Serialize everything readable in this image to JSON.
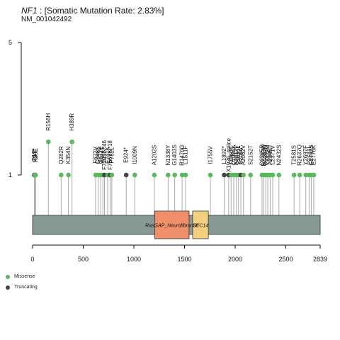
{
  "title": {
    "gene": "NF1",
    "rest": " : [Somatic Mutation Rate: 2.83%]"
  },
  "subtitle": "NM_001042492",
  "colors": {
    "missense": "#5cb85c",
    "truncating": "#444444",
    "backbone": "#889a96",
    "stem": "#aaaaaa"
  },
  "legend": [
    {
      "label": "Missense",
      "color": "#5cb85c"
    },
    {
      "label": "Truncating",
      "color": "#444444"
    }
  ],
  "chart_data": {
    "type": "lollipop",
    "title": "NF1 : [Somatic Mutation Rate: 2.83%]",
    "subtitle": "NM_001042492",
    "xlim": [
      0,
      2839
    ],
    "x_ticks": [
      0,
      500,
      1000,
      1500,
      2000,
      2500,
      2839
    ],
    "ylim": [
      0,
      5
    ],
    "y_ticks": [
      1,
      5
    ],
    "domains": [
      {
        "name": "RasGAP_Neurofibromin",
        "start": 1205,
        "end": 1545,
        "color": "#f0906a"
      },
      {
        "name": "SEC14",
        "start": 1580,
        "end": 1735,
        "color": "#f5cf80"
      }
    ],
    "mutations": [
      {
        "label": "Q17*",
        "pos": 17,
        "count": 1,
        "type": "Truncating"
      },
      {
        "label": "P24T",
        "pos": 24,
        "count": 1,
        "type": "Missense"
      },
      {
        "label": "K30E",
        "pos": 30,
        "count": 1,
        "type": "Missense"
      },
      {
        "label": "R156H",
        "pos": 156,
        "count": 2,
        "type": "Missense"
      },
      {
        "label": "Q282R",
        "pos": 282,
        "count": 1,
        "type": "Missense"
      },
      {
        "label": "K354N",
        "pos": 354,
        "count": 1,
        "type": "Missense"
      },
      {
        "label": "H389R",
        "pos": 389,
        "count": 2,
        "type": "Missense"
      },
      {
        "label": "F622V",
        "pos": 622,
        "count": 1,
        "type": "Missense"
      },
      {
        "label": "G648S",
        "pos": 648,
        "count": 1,
        "type": "Missense"
      },
      {
        "label": "G672E",
        "pos": 672,
        "count": 1,
        "type": "Missense"
      },
      {
        "label": "A694T",
        "pos": 694,
        "count": 1,
        "type": "Missense"
      },
      {
        "label": "F710Sfs*46",
        "pos": 710,
        "count": 1,
        "type": "Truncating"
      },
      {
        "label": "E741K",
        "pos": 741,
        "count": 1,
        "type": "Missense"
      },
      {
        "label": "F766Yfs*18",
        "pos": 766,
        "count": 1,
        "type": "Truncating"
      },
      {
        "label": "P782L",
        "pos": 782,
        "count": 1,
        "type": "Missense"
      },
      {
        "label": "E924*",
        "pos": 924,
        "count": 1,
        "type": "Truncating"
      },
      {
        "label": "I1009N",
        "pos": 1009,
        "count": 1,
        "type": "Missense"
      },
      {
        "label": "A1202S",
        "pos": 1202,
        "count": 1,
        "type": "Missense"
      },
      {
        "label": "N1338Y",
        "pos": 1338,
        "count": 1,
        "type": "Missense"
      },
      {
        "label": "G1403S",
        "pos": 1403,
        "count": 1,
        "type": "Missense"
      },
      {
        "label": "R1476G",
        "pos": 1476,
        "count": 1,
        "type": "Missense"
      },
      {
        "label": "L1511F",
        "pos": 1511,
        "count": 1,
        "type": "Missense"
      },
      {
        "label": "I1755V",
        "pos": 1755,
        "count": 1,
        "type": "Missense"
      },
      {
        "label": "L1892*",
        "pos": 1892,
        "count": 1,
        "type": "Truncating"
      },
      {
        "label": "X1936_splice",
        "pos": 1936,
        "count": 1,
        "type": "Truncating"
      },
      {
        "label": "I1960T",
        "pos": 1960,
        "count": 1,
        "type": "Missense"
      },
      {
        "label": "Q1986K",
        "pos": 1986,
        "count": 1,
        "type": "Missense"
      },
      {
        "label": "A2012V",
        "pos": 2012,
        "count": 1,
        "type": "Missense"
      },
      {
        "label": "V2033L",
        "pos": 2033,
        "count": 1,
        "type": "Missense"
      },
      {
        "label": "R2056*",
        "pos": 2056,
        "count": 1,
        "type": "Truncating"
      },
      {
        "label": "A2082V",
        "pos": 2082,
        "count": 1,
        "type": "Missense"
      },
      {
        "label": "S2152T",
        "pos": 2152,
        "count": 1,
        "type": "Missense"
      },
      {
        "label": "Q2265R",
        "pos": 2265,
        "count": 1,
        "type": "Missense"
      },
      {
        "label": "R2283W",
        "pos": 2283,
        "count": 1,
        "type": "Missense"
      },
      {
        "label": "D2302N",
        "pos": 2302,
        "count": 1,
        "type": "Missense"
      },
      {
        "label": "T2322M",
        "pos": 2322,
        "count": 1,
        "type": "Missense"
      },
      {
        "label": "A2345T",
        "pos": 2345,
        "count": 1,
        "type": "Missense"
      },
      {
        "label": "L2371V",
        "pos": 2371,
        "count": 1,
        "type": "Missense"
      },
      {
        "label": "N2432S",
        "pos": 2432,
        "count": 1,
        "type": "Missense"
      },
      {
        "label": "T2581S",
        "pos": 2581,
        "count": 1,
        "type": "Missense"
      },
      {
        "label": "R2637Q",
        "pos": 2637,
        "count": 1,
        "type": "Missense"
      },
      {
        "label": "Y2697F",
        "pos": 2697,
        "count": 1,
        "type": "Missense"
      },
      {
        "label": "P2731L",
        "pos": 2731,
        "count": 1,
        "type": "Missense"
      },
      {
        "label": "G2752S",
        "pos": 2752,
        "count": 1,
        "type": "Missense"
      },
      {
        "label": "E2776K",
        "pos": 2776,
        "count": 1,
        "type": "Missense"
      }
    ]
  }
}
